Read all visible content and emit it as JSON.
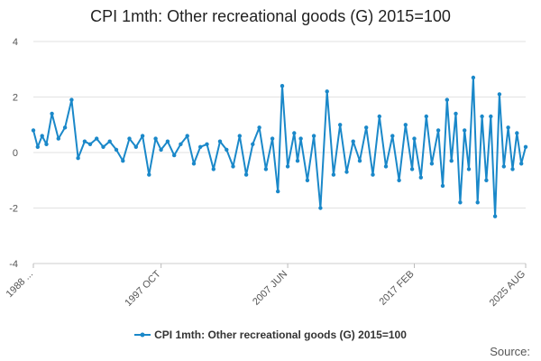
{
  "chart_data": {
    "type": "line",
    "title": "CPI 1mth: Other recreational goods (G) 2015=100",
    "xlabel": "",
    "ylabel": "",
    "ylim": [
      -4,
      4
    ],
    "y_ticks": [
      4,
      2,
      0,
      -2,
      -4
    ],
    "x_range": [
      "1988 JAN",
      "2025 AUG"
    ],
    "x_ticks": [
      "1988 ...",
      "1997 OCT",
      "2007 JUN",
      "2017 FEB",
      "2025 AUG"
    ],
    "grid": true,
    "legend_position": "bottom",
    "color": "#1a88c9",
    "series": [
      {
        "name": "CPI 1mth: Other recreational goods (G) 2015=100",
        "x": [
          "1988 JAN",
          "1988 MAY",
          "1988 SEP",
          "1989 JAN",
          "1989 JUN",
          "1989 DEC",
          "1990 JUN",
          "1990 DEC",
          "1991 JUN",
          "1991 DEC",
          "1992 MAY",
          "1992 NOV",
          "1993 MAY",
          "1993 NOV",
          "1994 MAY",
          "1994 NOV",
          "1995 MAY",
          "1995 NOV",
          "1996 MAY",
          "1996 NOV",
          "1997 MAY",
          "1997 OCT",
          "1998 APR",
          "1998 OCT",
          "1999 APR",
          "1999 OCT",
          "2000 APR",
          "2000 OCT",
          "2001 APR",
          "2001 OCT",
          "2002 APR",
          "2002 OCT",
          "2003 APR",
          "2003 OCT",
          "2004 APR",
          "2004 OCT",
          "2005 APR",
          "2005 OCT",
          "2006 APR",
          "2006 SEP",
          "2007 JAN",
          "2007 JUN",
          "2007 DEC",
          "2008 MAR",
          "2008 JUN",
          "2008 DEC",
          "2009 JUN",
          "2009 DEC",
          "2010 JUN",
          "2010 DEC",
          "2011 JUN",
          "2011 DEC",
          "2012 JUN",
          "2012 DEC",
          "2013 JUN",
          "2013 DEC",
          "2014 JUN",
          "2014 DEC",
          "2015 JUN",
          "2015 DEC",
          "2016 JUN",
          "2016 DEC",
          "2017 FEB",
          "2017 AUG",
          "2018 JAN",
          "2018 JUN",
          "2018 DEC",
          "2019 APR",
          "2019 AUG",
          "2019 DEC",
          "2020 APR",
          "2020 AUG",
          "2020 DEC",
          "2021 APR",
          "2021 AUG",
          "2021 DEC",
          "2022 APR",
          "2022 AUG",
          "2022 DEC",
          "2023 APR",
          "2023 AUG",
          "2023 DEC",
          "2024 APR",
          "2024 AUG",
          "2024 DEC",
          "2025 APR",
          "2025 AUG"
        ],
        "values": [
          0.8,
          0.2,
          0.6,
          0.3,
          1.4,
          0.5,
          0.9,
          1.9,
          -0.2,
          0.4,
          0.3,
          0.5,
          0.2,
          0.4,
          0.1,
          -0.3,
          0.5,
          0.2,
          0.6,
          -0.8,
          0.5,
          0.1,
          0.4,
          -0.1,
          0.3,
          0.6,
          -0.4,
          0.2,
          0.3,
          -0.6,
          0.4,
          0.1,
          -0.5,
          0.6,
          -0.8,
          0.3,
          0.9,
          -0.6,
          0.5,
          -1.4,
          2.4,
          -0.5,
          0.7,
          -0.3,
          0.5,
          -1.0,
          0.6,
          -2.0,
          2.2,
          -0.8,
          1.0,
          -0.7,
          0.4,
          -0.3,
          0.9,
          -0.8,
          1.3,
          -0.5,
          0.6,
          -1.0,
          1.0,
          -0.6,
          0.5,
          -0.9,
          1.3,
          -0.4,
          0.8,
          -1.2,
          1.9,
          -0.3,
          1.4,
          -1.8,
          0.8,
          -0.6,
          2.7,
          -1.8,
          1.3,
          -1.0,
          1.3,
          -2.3,
          2.1,
          -0.5,
          0.9,
          -0.6,
          0.7,
          -0.4,
          0.2
        ]
      }
    ]
  },
  "legend": {
    "label": "CPI 1mth: Other recreational goods (G) 2015=100"
  },
  "source": {
    "label": "Source:"
  }
}
